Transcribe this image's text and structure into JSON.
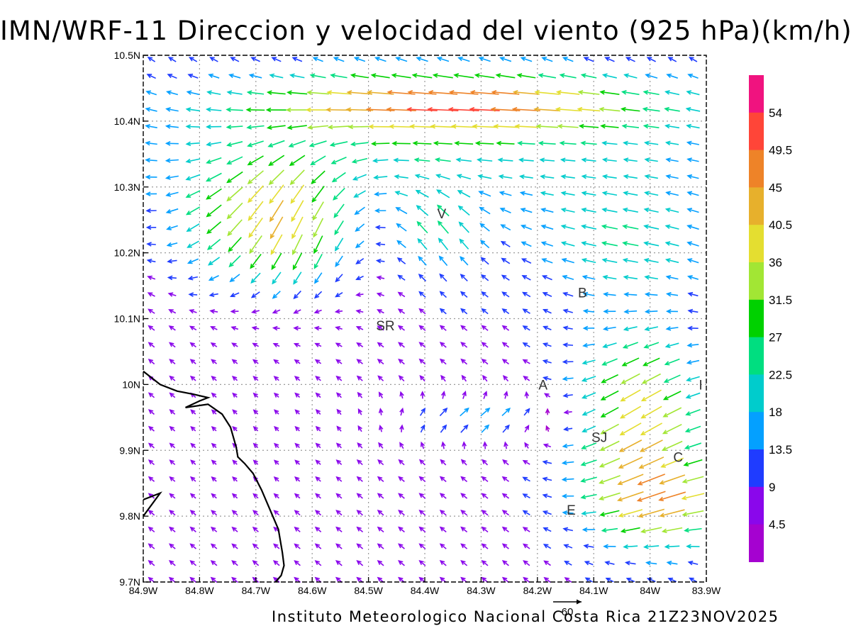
{
  "title": "IMN/WRF-11 Direccion y velocidad del viento (925 hPa)(km/h)",
  "footer": "Instituto Meteorologico Nacional Costa Rica  21Z23NOV2025",
  "reference_vector": {
    "label": "60",
    "speed": 60
  },
  "axes": {
    "x_ticks": [
      "84.9W",
      "84.8W",
      "84.7W",
      "84.6W",
      "84.5W",
      "84.4W",
      "84.3W",
      "84.2W",
      "84.1W",
      "84W",
      "83.9W"
    ],
    "x_values": [
      -84.9,
      -84.8,
      -84.7,
      -84.6,
      -84.5,
      -84.4,
      -84.3,
      -84.2,
      -84.1,
      -84.0,
      -83.9
    ],
    "y_ticks": [
      "9.7N",
      "9.8N",
      "9.9N",
      "10N",
      "10.1N",
      "10.2N",
      "10.3N",
      "10.4N",
      "10.5N"
    ],
    "y_values": [
      9.7,
      9.8,
      9.9,
      10.0,
      10.1,
      10.2,
      10.3,
      10.4,
      10.5
    ],
    "lon_range": [
      -84.9,
      -83.9
    ],
    "lat_range": [
      9.7,
      10.5
    ],
    "grid": true
  },
  "colorbar": {
    "labels": [
      "54",
      "49.5",
      "45",
      "40.5",
      "36",
      "31.5",
      "27",
      "22.5",
      "18",
      "13.5",
      "9",
      "4.5"
    ],
    "colors": [
      "#f0137f",
      "#ff4538",
      "#ee8328",
      "#e7b02c",
      "#e4de30",
      "#a2e634",
      "#00d100",
      "#00de80",
      "#00cccc",
      "#04a0ff",
      "#1f3cff",
      "#8a07eb",
      "#a502d0"
    ]
  },
  "cities": [
    {
      "label": "V",
      "lon": -84.37,
      "lat": 10.26
    },
    {
      "label": "SR",
      "lon": -84.47,
      "lat": 10.09
    },
    {
      "label": "B",
      "lon": -84.12,
      "lat": 10.14
    },
    {
      "label": "A",
      "lon": -84.19,
      "lat": 10.0
    },
    {
      "label": "I",
      "lon": -83.91,
      "lat": 10.0
    },
    {
      "label": "SJ",
      "lon": -84.09,
      "lat": 9.92
    },
    {
      "label": "C",
      "lon": -83.95,
      "lat": 9.89
    },
    {
      "label": "E",
      "lon": -84.14,
      "lat": 9.81
    }
  ],
  "coastline": [
    [
      [
        -84.9,
        10.02
      ],
      [
        -84.87,
        10.0
      ],
      [
        -84.84,
        9.99
      ],
      [
        -84.81,
        9.985
      ],
      [
        -84.785,
        9.98
      ],
      [
        -84.8,
        9.975
      ],
      [
        -84.825,
        9.965
      ],
      [
        -84.785,
        9.97
      ],
      [
        -84.76,
        9.955
      ],
      [
        -84.745,
        9.935
      ],
      [
        -84.74,
        9.92
      ],
      [
        -84.735,
        9.905
      ],
      [
        -84.732,
        9.89
      ],
      [
        -84.72,
        9.88
      ],
      [
        -84.705,
        9.865
      ],
      [
        -84.69,
        9.84
      ],
      [
        -84.675,
        9.81
      ],
      [
        -84.66,
        9.78
      ],
      [
        -84.653,
        9.745
      ],
      [
        -84.65,
        9.725
      ],
      [
        -84.655,
        9.71
      ],
      [
        -84.665,
        9.7
      ]
    ],
    [
      [
        -84.9,
        9.825
      ],
      [
        -84.87,
        9.835
      ],
      [
        -84.9,
        9.8
      ]
    ]
  ],
  "wind_field": {
    "lon_start": -84.905,
    "lon_step": 0.037,
    "lat_start": 9.703,
    "lat_step": 0.0255,
    "note": "km/h"
  }
}
